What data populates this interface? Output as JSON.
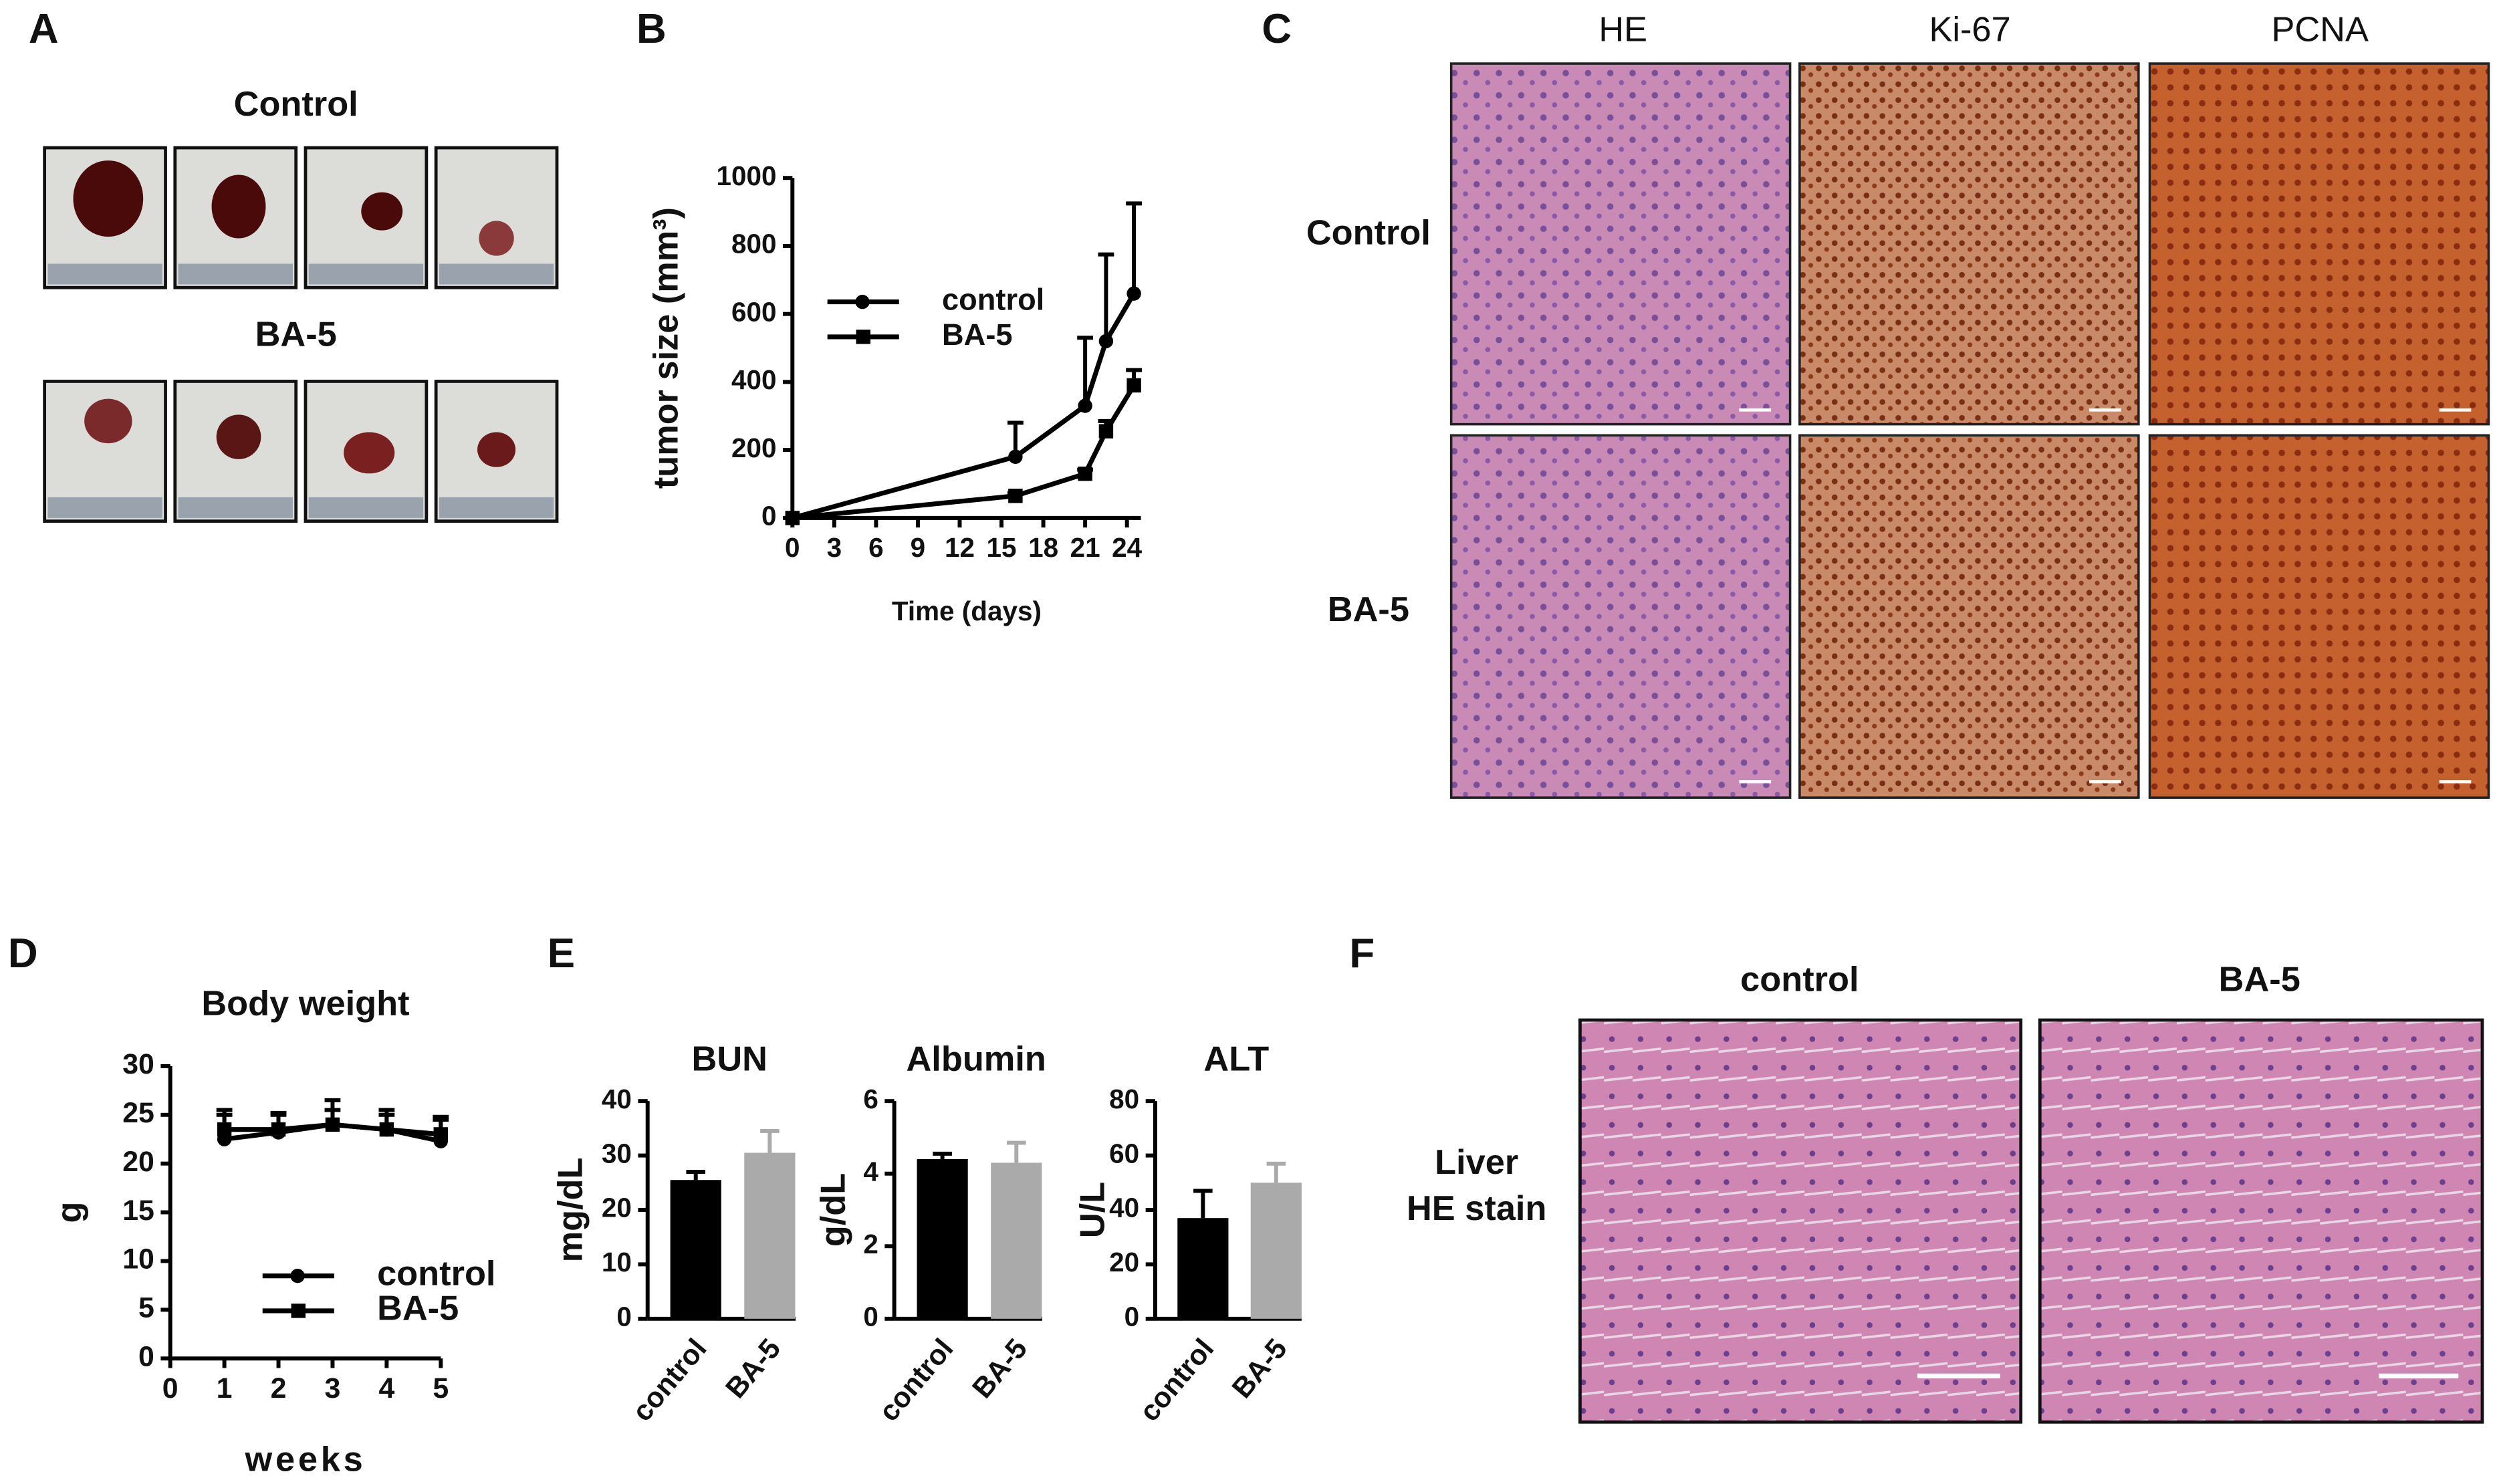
{
  "panel_labels": [
    "A",
    "B",
    "C",
    "D",
    "E",
    "F"
  ],
  "panel_a": {
    "group_labels": [
      "Control",
      "BA-5"
    ]
  },
  "panel_c": {
    "columns": [
      "HE",
      "Ki-67",
      "PCNA"
    ],
    "rows": [
      "Control",
      "BA-5"
    ]
  },
  "panel_f": {
    "columns": [
      "control",
      "BA-5"
    ],
    "row_label_lines": [
      "Liver",
      "HE stain"
    ]
  },
  "chart_data": [
    {
      "type": "line",
      "ylabel": "tumor size (mm³)",
      "xlabel": "Time (days)",
      "x": [
        0,
        16,
        21,
        22.5,
        24.5
      ],
      "xlim": [
        0,
        25
      ],
      "xticks": [
        0,
        3,
        6,
        9,
        12,
        15,
        18,
        21,
        24
      ],
      "ylim": [
        0,
        1000
      ],
      "yticks": [
        0,
        200,
        400,
        600,
        800,
        1000
      ],
      "legend": "upper left",
      "series": [
        {
          "name": "control",
          "color": "#000000",
          "marker": "circle",
          "values": [
            0,
            180,
            330,
            520,
            660
          ],
          "errors": [
            0,
            100,
            200,
            255,
            265
          ]
        },
        {
          "name": "BA-5",
          "color": "#000000",
          "marker": "square",
          "values": [
            0,
            65,
            130,
            255,
            390
          ],
          "errors": [
            0,
            8,
            12,
            30,
            45
          ]
        }
      ]
    },
    {
      "type": "line",
      "title": "Body weight",
      "ylabel": "g",
      "xlabel": "weeks",
      "x": [
        1,
        2,
        3,
        4,
        5
      ],
      "xlim": [
        0,
        5
      ],
      "xticks": [
        0,
        1,
        2,
        3,
        4,
        5
      ],
      "ylim": [
        0,
        30
      ],
      "yticks": [
        0,
        5,
        10,
        15,
        20,
        25,
        30
      ],
      "legend": "lower right",
      "series": [
        {
          "name": "control",
          "color": "#000000",
          "marker": "circle",
          "values": [
            22.5,
            23.2,
            24,
            23.5,
            22.3
          ],
          "errors": [
            3,
            2,
            2.5,
            2,
            2.5
          ]
        },
        {
          "name": "BA-5",
          "color": "#000000",
          "marker": "square",
          "values": [
            23.5,
            23.5,
            24,
            23.5,
            23
          ],
          "errors": [
            1.5,
            1.5,
            1.5,
            1.5,
            1.5
          ]
        }
      ]
    },
    {
      "type": "bar",
      "title": "BUN",
      "ylabel": "mg/dL",
      "categories": [
        "control",
        "BA-5"
      ],
      "values": [
        25.5,
        30.5
      ],
      "errors": [
        1.5,
        4
      ],
      "colors": [
        "#000000",
        "#aaaaaa"
      ],
      "ylim": [
        0,
        40
      ],
      "yticks": [
        0,
        10,
        20,
        30,
        40
      ]
    },
    {
      "type": "bar",
      "title": "Albumin",
      "ylabel": "g/dL",
      "categories": [
        "control",
        "BA-5"
      ],
      "values": [
        4.4,
        4.3
      ],
      "errors": [
        0.15,
        0.55
      ],
      "colors": [
        "#000000",
        "#aaaaaa"
      ],
      "ylim": [
        0,
        6
      ],
      "yticks": [
        0,
        2,
        4,
        6
      ]
    },
    {
      "type": "bar",
      "title": "ALT",
      "ylabel": "U/L",
      "categories": [
        "control",
        "BA-5"
      ],
      "values": [
        37,
        50
      ],
      "errors": [
        10,
        7
      ],
      "colors": [
        "#000000",
        "#aaaaaa"
      ],
      "ylim": [
        0,
        80
      ],
      "yticks": [
        0,
        20,
        40,
        60,
        80
      ]
    }
  ]
}
